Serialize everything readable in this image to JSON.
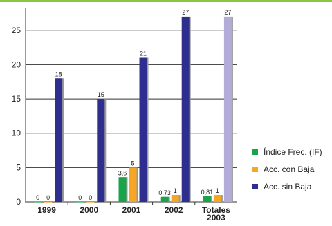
{
  "chart_data": {
    "type": "bar",
    "categories": [
      "1999",
      "2000",
      "2001",
      "2002",
      "Totales 2003"
    ],
    "ylim": [
      0,
      28
    ],
    "yticks": [
      0,
      5,
      10,
      15,
      20,
      25
    ],
    "grid": true,
    "legend_position": "right",
    "series": [
      {
        "name": "Índice Frec. (IF)",
        "values": [
          0,
          0,
          3.6,
          0.73,
          0.81
        ],
        "labels": [
          "0",
          "0",
          "3,6",
          "0,73",
          "0,81"
        ],
        "color": "#1aa34a"
      },
      {
        "name": "Acc. con Baja",
        "values": [
          0,
          0,
          5,
          1,
          1
        ],
        "labels": [
          "0",
          "0",
          "5",
          "1",
          "1"
        ],
        "color": "#f5a623"
      },
      {
        "name": "Acc. sin Baja",
        "values": [
          18,
          15,
          21,
          27,
          27
        ],
        "labels": [
          "18",
          "15",
          "21",
          "27",
          "27"
        ],
        "color": "#2e2e8f"
      }
    ],
    "highlight_color": "#b3acd9",
    "top_bar_color": "#8cc63f"
  }
}
